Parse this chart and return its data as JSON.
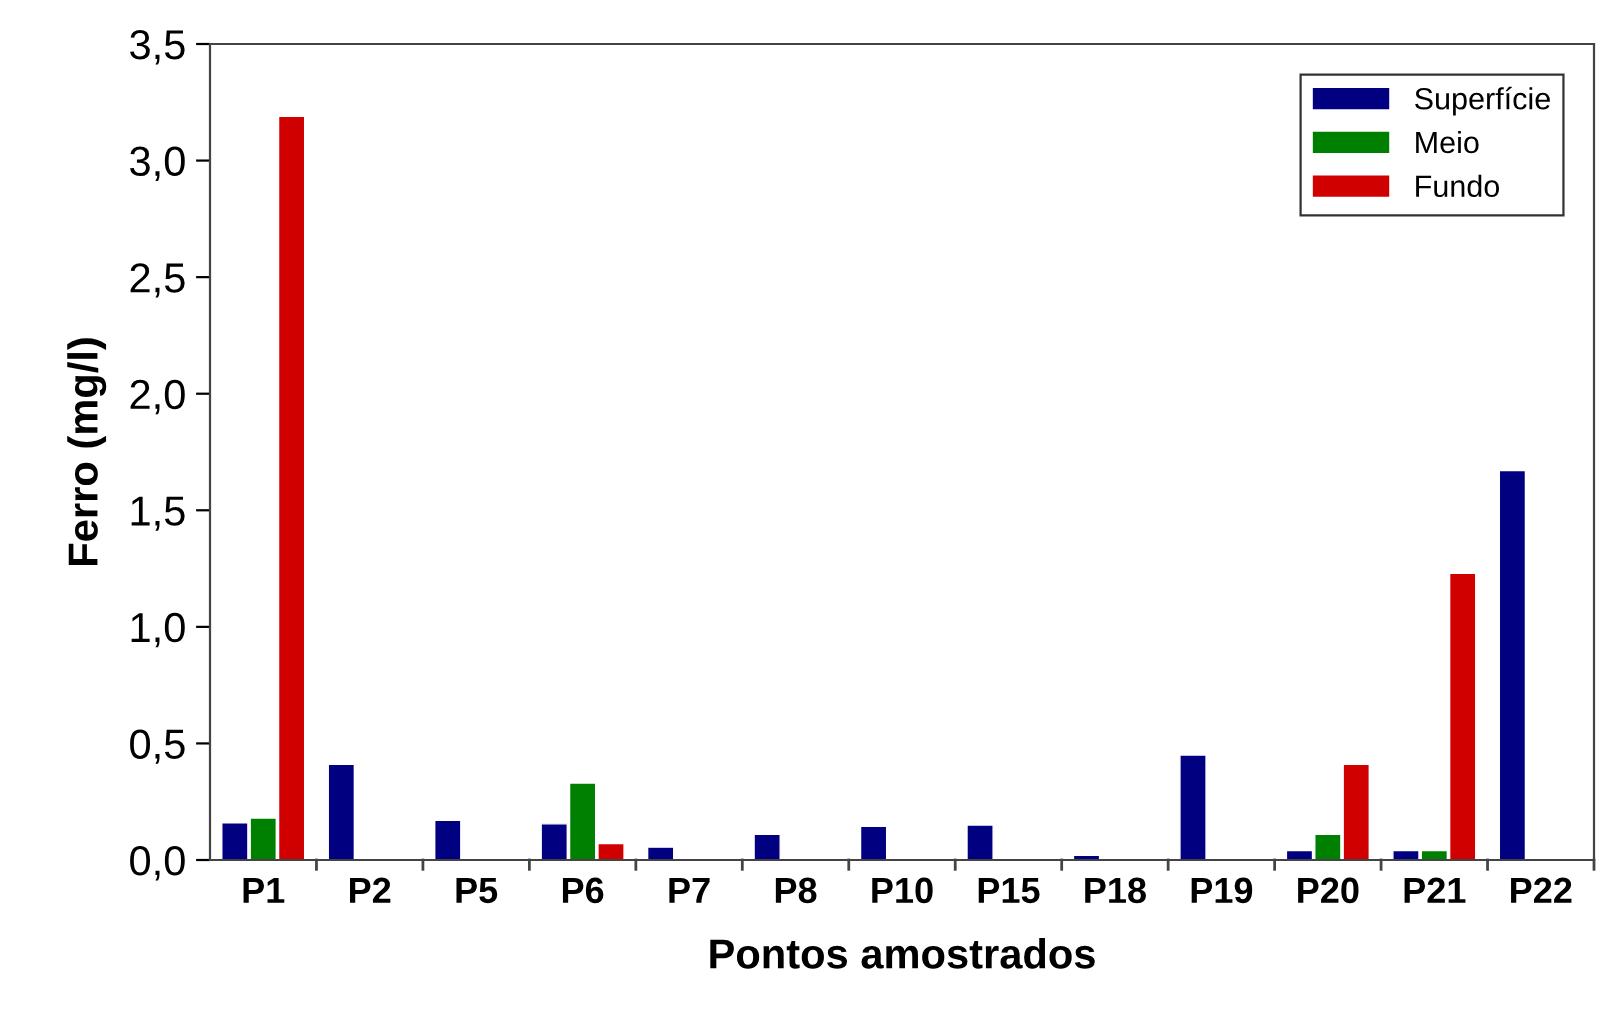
{
  "chart_data": {
    "type": "bar",
    "xlabel": "Pontos amostrados",
    "ylabel": "Ferro (mg/l)",
    "categories": [
      "P1",
      "P2",
      "P5",
      "P6",
      "P7",
      "P8",
      "P10",
      "P15",
      "P18",
      "P19",
      "P20",
      "P21",
      "P22"
    ],
    "series": [
      {
        "name": "Superfície",
        "color": "#000080",
        "values": [
          0.16,
          0.41,
          0.17,
          0.155,
          0.055,
          0.11,
          0.145,
          0.15,
          0.02,
          0.45,
          0.04,
          0.04,
          1.67
        ]
      },
      {
        "name": "Meio",
        "color": "#008000",
        "values": [
          0.18,
          null,
          null,
          0.33,
          null,
          null,
          null,
          null,
          null,
          null,
          0.11,
          0.04,
          null
        ]
      },
      {
        "name": "Fundo",
        "color": "#d00000",
        "values": [
          3.19,
          null,
          null,
          0.07,
          null,
          null,
          null,
          null,
          null,
          null,
          0.41,
          1.23,
          null
        ]
      }
    ],
    "ylim": [
      0,
      3.5
    ],
    "yticks": [
      {
        "value": 0,
        "label": "0,0"
      },
      {
        "value": 0.5,
        "label": "0,5"
      },
      {
        "value": 1,
        "label": "1,0"
      },
      {
        "value": 1.5,
        "label": "1,5"
      },
      {
        "value": 2,
        "label": "2,0"
      },
      {
        "value": 2.5,
        "label": "2,5"
      },
      {
        "value": 3,
        "label": "3,0"
      },
      {
        "value": 3.5,
        "label": "3,5"
      }
    ],
    "grid": false,
    "legend": "top right"
  }
}
